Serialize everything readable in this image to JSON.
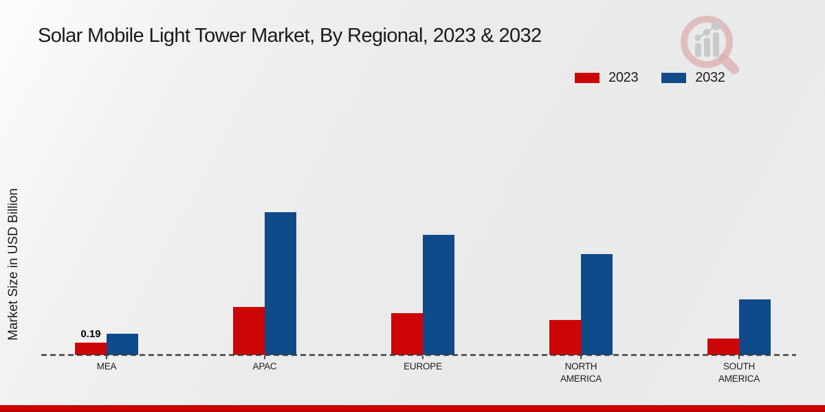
{
  "title": "Solar Mobile Light Tower Market, By Regional, 2023 & 2032",
  "ylabel": "Market Size in USD Billion",
  "legend": {
    "items": [
      {
        "label": "2023",
        "color": "#cc0606"
      },
      {
        "label": "2032",
        "color": "#0f4a8a"
      }
    ]
  },
  "colors": {
    "series_2023": "#cc0606",
    "series_2032": "#0f4a8a",
    "axis_dash": "#3d3d3d",
    "text": "#1b1b1b",
    "footer_bar": "#cf0404",
    "watermark_pink": "#ddb2b2",
    "watermark_gray": "#c7c9cb"
  },
  "watermark_icon": "magnifier-growth-chart-logo",
  "chart_data": {
    "type": "bar",
    "title": "Solar Mobile Light Tower Market, By Regional, 2023 & 2032",
    "xlabel": "",
    "ylabel": "Market Size in USD Billion",
    "categories": [
      "MEA",
      "APAC",
      "EUROPE",
      "NORTH AMERICA",
      "SOUTH AMERICA"
    ],
    "tick_labels": [
      "MEA",
      "APAC",
      "EUROPE",
      "NORTH\nAMERICA",
      "SOUTH\nAMERICA"
    ],
    "series": [
      {
        "name": "2023",
        "color": "#cc0606",
        "values": [
          0.19,
          0.74,
          0.64,
          0.54,
          0.25
        ]
      },
      {
        "name": "2032",
        "color": "#0f4a8a",
        "values": [
          0.33,
          2.2,
          1.85,
          1.55,
          0.86
        ]
      }
    ],
    "value_labels": [
      {
        "category": "MEA",
        "series": "2023",
        "text": "0.19"
      }
    ],
    "ylim": [
      0,
      2.5
    ],
    "grid": false,
    "axis_style": "dashed-baseline-only",
    "legend_position": "top-right"
  }
}
